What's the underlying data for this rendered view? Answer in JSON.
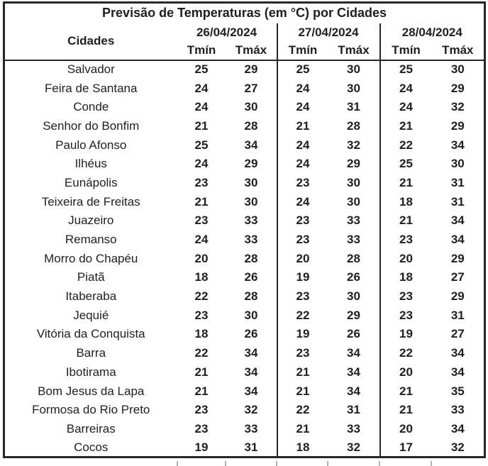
{
  "chart_data": {
    "type": "table",
    "title": "Previsão de Temperaturas (em °C) por Cidades",
    "city_column_header": "Cidades",
    "date_groups": [
      "26/04/2024",
      "27/04/2024",
      "28/04/2024"
    ],
    "sub_headers": [
      "Tmín",
      "Tmáx"
    ],
    "rows": [
      {
        "city": "Salvador",
        "temps": [
          25,
          29,
          25,
          30,
          25,
          30
        ]
      },
      {
        "city": "Feira de Santana",
        "temps": [
          24,
          27,
          24,
          30,
          24,
          29
        ]
      },
      {
        "city": "Conde",
        "temps": [
          24,
          30,
          24,
          31,
          24,
          32
        ]
      },
      {
        "city": "Senhor do Bonfim",
        "temps": [
          21,
          28,
          21,
          28,
          21,
          29
        ]
      },
      {
        "city": "Paulo Afonso",
        "temps": [
          25,
          34,
          24,
          32,
          22,
          34
        ]
      },
      {
        "city": "Ilhéus",
        "temps": [
          24,
          29,
          24,
          29,
          25,
          30
        ]
      },
      {
        "city": "Eunápolis",
        "temps": [
          23,
          30,
          23,
          30,
          21,
          31
        ]
      },
      {
        "city": "Teixeira de Freitas",
        "temps": [
          21,
          30,
          24,
          30,
          18,
          31
        ]
      },
      {
        "city": "Juazeiro",
        "temps": [
          23,
          33,
          23,
          33,
          21,
          34
        ]
      },
      {
        "city": "Remanso",
        "temps": [
          24,
          33,
          23,
          33,
          23,
          34
        ]
      },
      {
        "city": "Morro do Chapéu",
        "temps": [
          20,
          28,
          20,
          28,
          20,
          29
        ]
      },
      {
        "city": "Piatã",
        "temps": [
          18,
          26,
          19,
          26,
          18,
          27
        ]
      },
      {
        "city": "Itaberaba",
        "temps": [
          22,
          28,
          23,
          30,
          23,
          29
        ]
      },
      {
        "city": "Jequié",
        "temps": [
          23,
          30,
          22,
          29,
          23,
          31
        ]
      },
      {
        "city": "Vitória da Conquista",
        "temps": [
          18,
          26,
          19,
          26,
          19,
          27
        ]
      },
      {
        "city": "Barra",
        "temps": [
          22,
          34,
          23,
          34,
          22,
          34
        ]
      },
      {
        "city": "Ibotirama",
        "temps": [
          21,
          34,
          21,
          34,
          20,
          34
        ]
      },
      {
        "city": "Bom Jesus da Lapa",
        "temps": [
          21,
          34,
          21,
          34,
          21,
          35
        ]
      },
      {
        "city": "Formosa do Rio Preto",
        "temps": [
          23,
          32,
          22,
          31,
          21,
          33
        ]
      },
      {
        "city": "Barreiras",
        "temps": [
          23,
          33,
          21,
          33,
          20,
          34
        ]
      },
      {
        "city": "Cocos",
        "temps": [
          19,
          31,
          18,
          32,
          17,
          32
        ]
      }
    ],
    "layout_hints": {
      "columns_per_date": 2,
      "grid": "vertical dividers between date groups only; horizontal rule under header row"
    }
  },
  "colors": {
    "border": "#262626",
    "text": "#1f1f1f",
    "background": "#ffffff",
    "artifact_gray": "#b3b3b3"
  }
}
